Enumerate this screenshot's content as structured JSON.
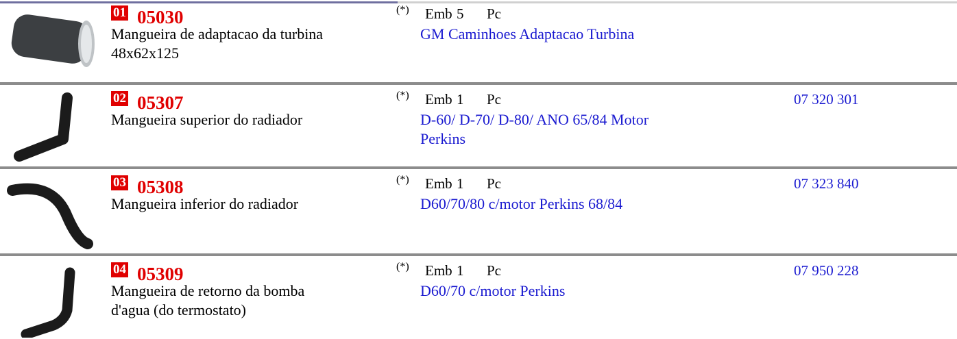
{
  "items": [
    {
      "number": "01",
      "code": "05030",
      "description": [
        "Mangueira de adaptacao da turbina",
        "48x62x125"
      ],
      "note": "(*)",
      "pack_label": "Emb",
      "pack_qty": "5",
      "unit": "Pc",
      "application": [
        "GM Caminhoes  Adaptacao  Turbina"
      ],
      "reference": ""
    },
    {
      "number": "02",
      "code": "05307",
      "description": [
        "Mangueira superior do radiador"
      ],
      "note": "(*)",
      "pack_label": "Emb",
      "pack_qty": "1",
      "unit": "Pc",
      "application": [
        "D-60/ D-70/ D-80/ ANO 65/84 Motor",
        "Perkins"
      ],
      "reference": "07 320 301"
    },
    {
      "number": "03",
      "code": "05308",
      "description": [
        "Mangueira inferior do radiador"
      ],
      "note": "(*)",
      "pack_label": "Emb",
      "pack_qty": "1",
      "unit": "Pc",
      "application": [
        "D60/70/80 c/motor Perkins 68/84"
      ],
      "reference": "07 323 840"
    },
    {
      "number": "04",
      "code": "05309",
      "description": [
        "Mangueira de retorno da bomba",
        "d'agua (do termostato)"
      ],
      "note": "(*)",
      "pack_label": "Emb",
      "pack_qty": "1",
      "unit": "Pc",
      "application": [
        "D60/70 c/motor Perkins"
      ],
      "reference": "07 950 228"
    }
  ]
}
